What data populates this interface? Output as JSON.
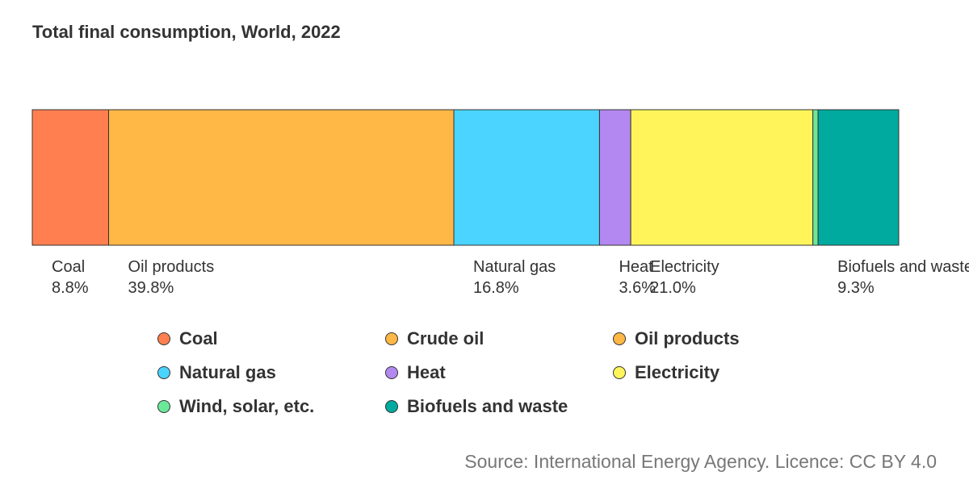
{
  "chart_data": {
    "type": "bar",
    "orientation": "horizontal-stacked-100",
    "title": "Total final consumption, World, 2022",
    "segments": [
      {
        "name": "Coal",
        "value": 8.8,
        "value_label": "8.8%",
        "color": "#ff7f50",
        "show_label": true
      },
      {
        "name": "Oil products",
        "value": 39.8,
        "value_label": "39.8%",
        "color": "#ffb745",
        "show_label": true
      },
      {
        "name": "Natural gas",
        "value": 16.8,
        "value_label": "16.8%",
        "color": "#4ad4ff",
        "show_label": true
      },
      {
        "name": "Heat",
        "value": 3.6,
        "value_label": "3.6%",
        "color": "#b388f0",
        "show_label": true
      },
      {
        "name": "Electricity",
        "value": 21.0,
        "value_label": "21.0%",
        "color": "#fff55a",
        "show_label": true
      },
      {
        "name": "Wind, solar, etc.",
        "value": 0.6,
        "value_label": "",
        "color": "#6be89a",
        "show_label": false
      },
      {
        "name": "Biofuels and waste",
        "value": 9.3,
        "value_label": "9.3%",
        "color": "#00aa9e",
        "show_label": true
      }
    ],
    "legend": {
      "placement": "bottom",
      "items": [
        {
          "name": "Coal",
          "color": "#ff7f50"
        },
        {
          "name": "Crude oil",
          "color": "#ffb745"
        },
        {
          "name": "Oil products",
          "color": "#ffb745"
        },
        {
          "name": "Natural gas",
          "color": "#4ad4ff"
        },
        {
          "name": "Heat",
          "color": "#b388f0"
        },
        {
          "name": "Electricity",
          "color": "#fff55a"
        },
        {
          "name": "Wind, solar, etc.",
          "color": "#6be89a"
        },
        {
          "name": "Biofuels and waste",
          "color": "#00aa9e"
        }
      ]
    },
    "grid": false
  },
  "source": "Source: International Energy Agency. Licence: CC BY 4.0"
}
